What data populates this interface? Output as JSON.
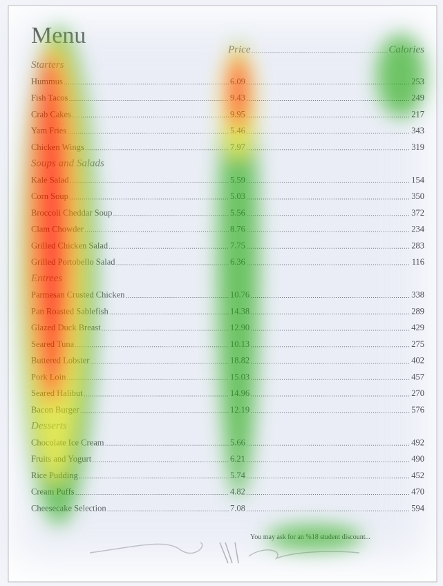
{
  "title": "Menu",
  "columns": {
    "price": "Price",
    "calories": "Calories"
  },
  "sections": [
    {
      "name": "Starters",
      "items": [
        {
          "name": "Hummus",
          "price": "6.09",
          "calories": "253"
        },
        {
          "name": "Fish Tacos",
          "price": "9.43",
          "calories": "249"
        },
        {
          "name": "Crab Cakes",
          "price": "9.95",
          "calories": "217"
        },
        {
          "name": "Yam Fries",
          "price": "5.46",
          "calories": "343"
        },
        {
          "name": "Chicken Wings",
          "price": "7.97",
          "calories": "319"
        }
      ]
    },
    {
      "name": "Soups and Salads",
      "items": [
        {
          "name": "Kale Salad",
          "price": "5.59",
          "calories": "154"
        },
        {
          "name": "Corn Soup",
          "price": "5.03",
          "calories": "350"
        },
        {
          "name": "Broccoli Cheddar Soup",
          "price": "5.56",
          "calories": "372"
        },
        {
          "name": "Clam Chowder",
          "price": "8.76",
          "calories": "234"
        },
        {
          "name": "Grilled Chicken Salad",
          "price": "7.75",
          "calories": "283"
        },
        {
          "name": "Grilled Portobello Salad",
          "price": "6.36",
          "calories": "116"
        }
      ]
    },
    {
      "name": "Entrees",
      "items": [
        {
          "name": "Parmesan Crusted Chicken",
          "price": "10.76",
          "calories": "338"
        },
        {
          "name": "Pan Roasted Sablefish",
          "price": "14.38",
          "calories": "289"
        },
        {
          "name": "Glazed Duck Breast",
          "price": "12.90",
          "calories": "429"
        },
        {
          "name": "Seared Tuna",
          "price": "10.13",
          "calories": "275"
        },
        {
          "name": "Buttered Lobster",
          "price": "18.82",
          "calories": "402"
        },
        {
          "name": "Pork Loin",
          "price": "15.03",
          "calories": "457"
        },
        {
          "name": "Seared Halibut",
          "price": "14.96",
          "calories": "270"
        },
        {
          "name": "Bacon Burger",
          "price": "12.19",
          "calories": "576"
        }
      ]
    },
    {
      "name": "Desserts",
      "items": [
        {
          "name": "Chocolate Ice Cream",
          "price": "5.66",
          "calories": "492"
        },
        {
          "name": "Fruits and Yogurt",
          "price": "6.21",
          "calories": "490"
        },
        {
          "name": "Rice Pudding",
          "price": "5.74",
          "calories": "452"
        },
        {
          "name": "Cream Puffs",
          "price": "4.82",
          "calories": "470"
        },
        {
          "name": "Cheesecake Selection",
          "price": "7.08",
          "calories": "594"
        }
      ]
    }
  ],
  "note": "You may ask for an %18 student discount..."
}
